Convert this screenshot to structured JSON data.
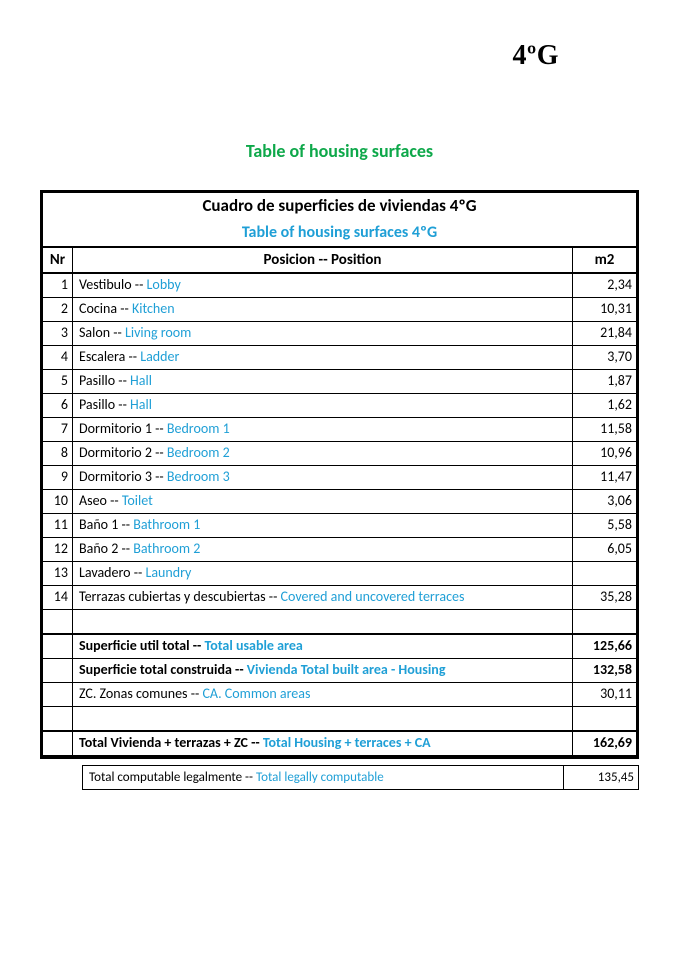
{
  "colors": {
    "accent": "#0ea84a",
    "link": "#1f9fd6",
    "text": "#000000",
    "bg": "#ffffff"
  },
  "corner_code": "4ºG",
  "page_title": "Table of housing surfaces",
  "table": {
    "header_line1": "Cuadro de superficies de viviendas 4ºG",
    "header_line2": "Table of housing surfaces 4ºG",
    "col_nr": "Nr",
    "col_pos": "Posicion -- Position",
    "col_m2": "m2",
    "rows": [
      {
        "nr": "1",
        "es": "Vestibulo",
        "sep": " -- ",
        "en": "Lobby",
        "m2": "2,34"
      },
      {
        "nr": "2",
        "es": "Cocina",
        "sep": " -- ",
        "en": "Kitchen",
        "m2": "10,31"
      },
      {
        "nr": "3",
        "es": "Salon",
        "sep": " -- ",
        "en": "Living room",
        "m2": "21,84"
      },
      {
        "nr": "4",
        "es": "Escalera",
        "sep": " -- ",
        "en": "Ladder",
        "m2": "3,70"
      },
      {
        "nr": "5",
        "es": "Pasillo",
        "sep": " -- ",
        "en": "Hall",
        "m2": "1,87"
      },
      {
        "nr": "6",
        "es": "Pasillo",
        "sep": " -- ",
        "en": "Hall",
        "m2": "1,62"
      },
      {
        "nr": "7",
        "es": "Dormitorio 1",
        "sep": " -- ",
        "en": "Bedroom 1",
        "m2": "11,58"
      },
      {
        "nr": "8",
        "es": "Dormitorio 2",
        "sep": " -- ",
        "en": "Bedroom 2",
        "m2": "10,96"
      },
      {
        "nr": "9",
        "es": "Dormitorio 3",
        "sep": " -- ",
        "en": "Bedroom 3",
        "m2": "11,47"
      },
      {
        "nr": "10",
        "es": "Aseo",
        "sep": " -- ",
        "en": "Toilet",
        "m2": "3,06"
      },
      {
        "nr": "11",
        "es": "Baño 1",
        "sep": " -- ",
        "en": "Bathroom 1",
        "m2": "5,58"
      },
      {
        "nr": "12",
        "es": "Baño 2",
        "sep": " -- ",
        "en": "Bathroom 2",
        "m2": "6,05"
      },
      {
        "nr": "13",
        "es": "Lavadero",
        "sep": " -- ",
        "en": "Laundry",
        "m2": ""
      },
      {
        "nr": "14",
        "es": "Terrazas cubiertas y descubiertas",
        "sep": " -- ",
        "en": "Covered and uncovered terraces",
        "m2": "35,28"
      }
    ],
    "summary": {
      "usable": {
        "es": "Superficie util total",
        "sep": " -- ",
        "en": "Total usable area",
        "m2": "125,66"
      },
      "built": {
        "es": "Superficie total construida",
        "sep": " -- ",
        "en": "Vivienda Total built area - Housing",
        "m2": "132,58"
      },
      "common": {
        "es": "ZC. Zonas comunes ",
        "sep": " -- ",
        "en": "CA. Common areas",
        "m2": "30,11"
      },
      "grand_total": {
        "es": "Total Vivienda + terrazas + ZC ",
        "sep": " -- ",
        "en": "Total Housing + terraces + CA",
        "m2": "162,69"
      }
    },
    "legal": {
      "es": "Total computable legalmente",
      "sep": " -- ",
      "en": "Total legally computable",
      "m2": "135,45"
    }
  }
}
